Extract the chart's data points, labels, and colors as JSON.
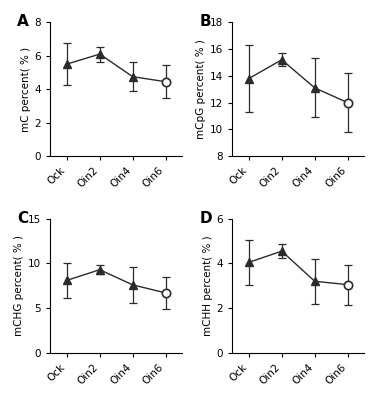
{
  "categories": [
    "Ock",
    "Oin2",
    "Oin4",
    "Oin6"
  ],
  "panels": [
    {
      "label": "A",
      "ylabel": "mC percent( % )",
      "values": [
        5.5,
        6.1,
        4.75,
        4.45
      ],
      "errors": [
        1.25,
        0.45,
        0.85,
        1.0
      ],
      "ylim": [
        0,
        8
      ],
      "yticks": [
        0,
        2,
        4,
        6,
        8
      ]
    },
    {
      "label": "B",
      "ylabel": "mCpG percent( % )",
      "values": [
        13.8,
        15.2,
        13.1,
        12.0
      ],
      "errors": [
        2.5,
        0.5,
        2.2,
        2.2
      ],
      "ylim": [
        8,
        18
      ],
      "yticks": [
        8,
        10,
        12,
        14,
        16,
        18
      ]
    },
    {
      "label": "C",
      "ylabel": "mCHG percent( % )",
      "values": [
        8.1,
        9.3,
        7.6,
        6.7
      ],
      "errors": [
        2.0,
        0.5,
        2.0,
        1.8
      ],
      "ylim": [
        0,
        15
      ],
      "yticks": [
        0,
        5,
        10,
        15
      ]
    },
    {
      "label": "D",
      "ylabel": "mCHH percent( % )",
      "values": [
        4.05,
        4.55,
        3.2,
        3.05
      ],
      "errors": [
        1.0,
        0.3,
        1.0,
        0.9
      ],
      "ylim": [
        0,
        6
      ],
      "yticks": [
        0,
        2,
        4,
        6
      ]
    }
  ],
  "line_color": "#2b2b2b",
  "marker_filled": "^",
  "marker_open": "o",
  "markersize": 6,
  "linewidth": 1.0,
  "capsize": 3,
  "elinewidth": 0.9
}
